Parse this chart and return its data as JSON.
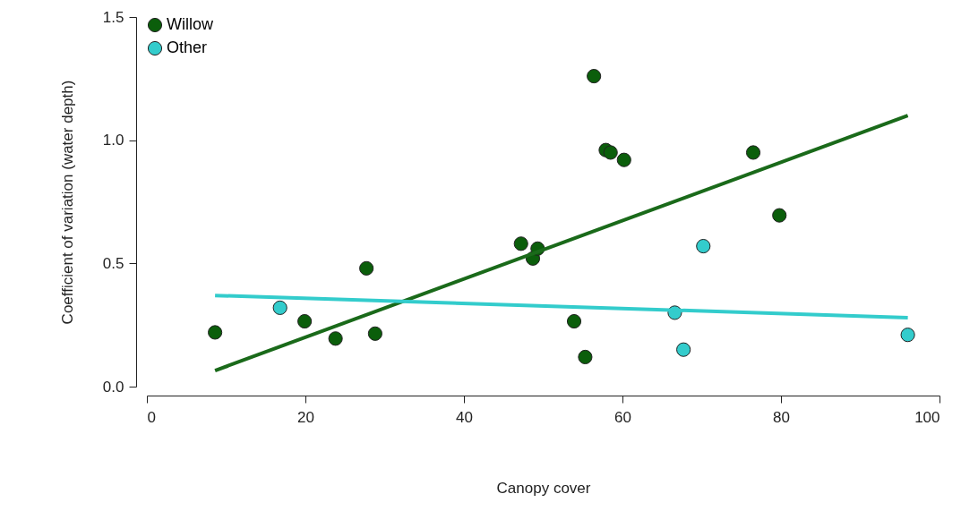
{
  "chart_data": {
    "type": "scatter",
    "xlabel": "Canopy cover",
    "ylabel": "Coefficient of variation (water depth)",
    "xlim": [
      0,
      100
    ],
    "ylim": [
      0,
      1.5
    ],
    "xticks": [
      0,
      20,
      40,
      60,
      80,
      100
    ],
    "yticks": [
      {
        "value": 0,
        "label": "0.0"
      },
      {
        "value": 0.5,
        "label": "0.5"
      },
      {
        "value": 1,
        "label": "1.0"
      },
      {
        "value": 1.5,
        "label": "1.5"
      }
    ],
    "grid": false,
    "legend": "top left",
    "series": [
      {
        "name": "Willow",
        "color": "#0b5e0b",
        "marker": "circle",
        "x": [
          8.6,
          19.9,
          23.8,
          27.7,
          28.8,
          47.2,
          48.7,
          49.3,
          53.9,
          55.3,
          56.4,
          57.9,
          58.5,
          60.2,
          76.5,
          79.8
        ],
        "values": [
          0.22,
          0.265,
          0.195,
          0.48,
          0.215,
          0.58,
          0.52,
          0.56,
          0.265,
          0.12,
          1.26,
          0.96,
          0.95,
          0.92,
          0.95,
          0.695
        ]
      },
      {
        "name": "Other",
        "color": "#33cccc",
        "marker": "circle",
        "x": [
          16.8,
          66.6,
          67.7,
          70.2,
          96.0
        ],
        "values": [
          0.32,
          0.3,
          0.15,
          0.57,
          0.21
        ]
      },
      {
        "color": "#1a6a1a",
        "type": "line",
        "x": [
          8.6,
          96.0
        ],
        "values": [
          0.065,
          1.1
        ]
      },
      {
        "color": "#33cccc",
        "type": "line",
        "x": [
          8.6,
          96.0
        ],
        "values": [
          0.37,
          0.28
        ]
      }
    ]
  }
}
